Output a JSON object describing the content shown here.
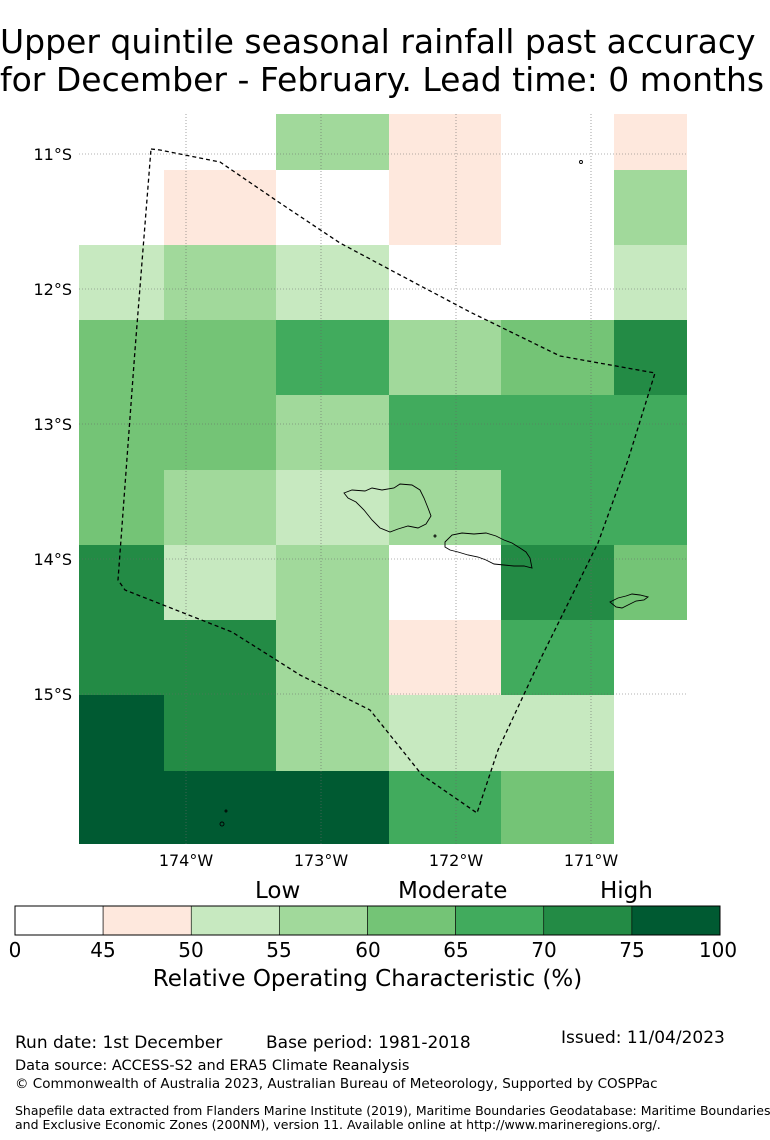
{
  "title": {
    "line1": "Upper quintile seasonal rainfall past accuracy",
    "line2": "for December - February. Lead time: 0 months"
  },
  "map": {
    "lat_labels": [
      "11°S",
      "12°S",
      "13°S",
      "14°S",
      "15°S"
    ],
    "lon_labels": [
      "174°W",
      "173°W",
      "172°W",
      "171°W"
    ],
    "lat_values": [
      -11,
      -12,
      -13,
      -14,
      -15
    ],
    "lon_values": [
      -174,
      -173,
      -172,
      -171
    ]
  },
  "colorbar": {
    "categories": [
      "Low",
      "Moderate",
      "High"
    ],
    "ticks": [
      "0",
      "45",
      "50",
      "55",
      "60",
      "65",
      "70",
      "75",
      "100"
    ],
    "colors": [
      "#ffffff",
      "#fee8dd",
      "#c7e9c0",
      "#a1d99b",
      "#74c476",
      "#41ab5d",
      "#238b45",
      "#005a32"
    ],
    "label": "Relative Operating Characteristic (%)"
  },
  "footer": {
    "run_date": "Run date: 1st December",
    "base_period": "Base period: 1981-2018",
    "issued": "Issued: 11/04/2023",
    "data_source": "Data source: ACCESS-S2 and ERA5 Climate Reanalysis",
    "copyright": "© Commonwealth of Australia 2023, Australian Bureau of Meteorology, Supported by COSPPac",
    "shapefile_1": "Shapefile data extracted from Flanders Marine Institute (2019), Maritime Boundaries Geodatabase: Maritime Boundaries",
    "shapefile_2": "and Exclusive Economic Zones (200NM), version 11. Available online at http://www.marineregions.org/."
  }
}
